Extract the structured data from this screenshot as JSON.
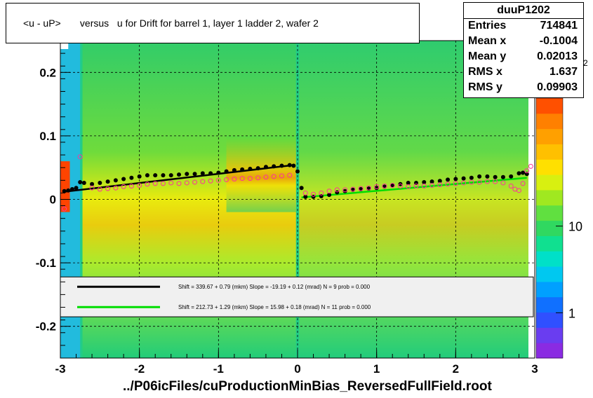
{
  "title": "<u - uP>       versus   u for Drift for barrel 1, layer 1 ladder 2, wafer 2",
  "footer": "../P06icFiles/cuProductionMinBias_ReversedFullField.root",
  "stats": {
    "name": "duuP1202",
    "rows": [
      {
        "key": "Entries",
        "value": "714841"
      },
      {
        "key": "Mean x",
        "value": "-0.1004"
      },
      {
        "key": "Mean y",
        "value": "0.02013"
      },
      {
        "key": "RMS x",
        "value": "1.637"
      },
      {
        "key": "RMS y",
        "value": "0.09903"
      }
    ]
  },
  "legend": [
    {
      "color": "#000000",
      "text": "Shift =   339.67 + 0.79 (mkm) Slope =   -19.19 + 0.12 (mrad)  N = 9 prob = 0.000"
    },
    {
      "color": "#00dd00",
      "text": "Shift =   212.73 + 1.29 (mkm) Slope =    15.98 + 0.18 (mrad)  N = 11 prob = 0.000"
    }
  ],
  "colors": {
    "black_series": "#000000",
    "green_series": "#00dd00",
    "pink_series": "#ff3399"
  },
  "chart_data": {
    "type": "heatmap",
    "xlim": [
      -3,
      3
    ],
    "ylim": [
      -0.25,
      0.25
    ],
    "x_ticks": [
      {
        "v": -3,
        "label": "-3"
      },
      {
        "v": -2,
        "label": "-2"
      },
      {
        "v": -1,
        "label": "-1"
      },
      {
        "v": 0,
        "label": "0"
      },
      {
        "v": 1,
        "label": "1"
      },
      {
        "v": 2,
        "label": "2"
      },
      {
        "v": 3,
        "label": "3"
      }
    ],
    "y_ticks": [
      {
        "v": 0.2,
        "label": "0.2"
      },
      {
        "v": 0.1,
        "label": "0.1"
      },
      {
        "v": 0,
        "label": "0"
      },
      {
        "v": -0.1,
        "label": "-0.1"
      },
      {
        "v": -0.2,
        "label": "-0.2"
      }
    ],
    "z_ticks": [
      {
        "v": 1,
        "label": "1"
      },
      {
        "v": 10,
        "label": "10"
      }
    ],
    "z_exponent_label": "2",
    "zlim": [
      0.3,
      300
    ],
    "grid": true,
    "series": [
      {
        "name": "",
        "marker": "black-dot",
        "points": [
          [
            -2.95,
            0.013
          ],
          [
            -2.9,
            0.014
          ],
          [
            -2.85,
            0.016
          ],
          [
            -2.8,
            0.018
          ],
          [
            -2.75,
            0.027
          ],
          [
            -2.7,
            0.026
          ],
          [
            -2.6,
            0.024
          ],
          [
            -2.5,
            0.026
          ],
          [
            -2.4,
            0.028
          ],
          [
            -2.3,
            0.03
          ],
          [
            -2.2,
            0.032
          ],
          [
            -2.1,
            0.034
          ],
          [
            -2.0,
            0.036
          ],
          [
            -1.9,
            0.038
          ],
          [
            -1.8,
            0.038
          ],
          [
            -1.7,
            0.038
          ],
          [
            -1.6,
            0.038
          ],
          [
            -1.5,
            0.039
          ],
          [
            -1.4,
            0.04
          ],
          [
            -1.3,
            0.04
          ],
          [
            -1.2,
            0.041
          ],
          [
            -1.1,
            0.041
          ],
          [
            -1.0,
            0.042
          ],
          [
            -0.9,
            0.044
          ],
          [
            -0.8,
            0.046
          ],
          [
            -0.7,
            0.047
          ],
          [
            -0.6,
            0.048
          ],
          [
            -0.5,
            0.049
          ],
          [
            -0.4,
            0.051
          ],
          [
            -0.3,
            0.052
          ],
          [
            -0.2,
            0.053
          ],
          [
            -0.1,
            0.054
          ],
          [
            -0.05,
            0.053
          ],
          [
            0.0,
            0.044
          ],
          [
            0.05,
            0.018
          ],
          [
            0.1,
            0.004
          ],
          [
            0.2,
            0.004
          ],
          [
            0.3,
            0.005
          ],
          [
            0.4,
            0.007
          ],
          [
            0.5,
            0.011
          ],
          [
            0.6,
            0.013
          ],
          [
            0.7,
            0.015
          ],
          [
            0.8,
            0.016
          ],
          [
            0.9,
            0.017
          ],
          [
            1.0,
            0.018
          ],
          [
            1.1,
            0.02
          ],
          [
            1.2,
            0.022
          ],
          [
            1.3,
            0.024
          ],
          [
            1.4,
            0.026
          ],
          [
            1.5,
            0.026
          ],
          [
            1.6,
            0.027
          ],
          [
            1.7,
            0.028
          ],
          [
            1.8,
            0.029
          ],
          [
            1.9,
            0.031
          ],
          [
            2.0,
            0.032
          ],
          [
            2.1,
            0.033
          ],
          [
            2.2,
            0.034
          ],
          [
            2.3,
            0.036
          ],
          [
            2.4,
            0.036
          ],
          [
            2.5,
            0.035
          ],
          [
            2.6,
            0.035
          ],
          [
            2.7,
            0.036
          ],
          [
            2.8,
            0.041
          ],
          [
            2.85,
            0.042
          ],
          [
            2.9,
            0.04
          ]
        ]
      },
      {
        "name": "",
        "marker": "pink-circle",
        "points": [
          [
            -2.95,
            -0.015
          ],
          [
            -2.75,
            0.067
          ],
          [
            -2.6,
            0.018
          ],
          [
            -2.5,
            0.016
          ],
          [
            -2.4,
            0.017
          ],
          [
            -2.3,
            0.018
          ],
          [
            -2.2,
            0.02
          ],
          [
            -2.1,
            0.021
          ],
          [
            -2.0,
            0.022
          ],
          [
            -1.9,
            0.024
          ],
          [
            -1.8,
            0.025
          ],
          [
            -1.7,
            0.025
          ],
          [
            -1.6,
            0.026
          ],
          [
            -1.5,
            0.025
          ],
          [
            -1.4,
            0.026
          ],
          [
            -1.3,
            0.027
          ],
          [
            -1.2,
            0.028
          ],
          [
            -1.1,
            0.029
          ],
          [
            -1.0,
            0.03
          ],
          [
            -0.9,
            0.031
          ],
          [
            -0.8,
            0.032
          ],
          [
            -0.7,
            0.033
          ],
          [
            -0.6,
            0.033
          ],
          [
            -0.5,
            0.034
          ],
          [
            -0.4,
            0.035
          ],
          [
            -0.3,
            0.036
          ],
          [
            -0.2,
            0.037
          ],
          [
            -0.1,
            0.038
          ],
          [
            0.1,
            0.01
          ],
          [
            0.2,
            0.008
          ],
          [
            0.3,
            0.01
          ],
          [
            0.4,
            0.013
          ],
          [
            0.5,
            0.015
          ],
          [
            0.6,
            0.015
          ],
          [
            0.7,
            0.016
          ],
          [
            0.8,
            0.017
          ],
          [
            0.9,
            0.018
          ],
          [
            1.0,
            0.02
          ],
          [
            1.1,
            0.021
          ],
          [
            1.2,
            0.022
          ],
          [
            1.3,
            0.021
          ],
          [
            1.4,
            0.02
          ],
          [
            1.5,
            0.021
          ],
          [
            1.6,
            0.021
          ],
          [
            1.7,
            0.022
          ],
          [
            1.8,
            0.023
          ],
          [
            1.9,
            0.024
          ],
          [
            2.0,
            0.025
          ],
          [
            2.1,
            0.026
          ],
          [
            2.2,
            0.027
          ],
          [
            2.3,
            0.027
          ],
          [
            2.4,
            0.028
          ],
          [
            2.5,
            0.028
          ],
          [
            2.6,
            0.026
          ],
          [
            2.7,
            0.021
          ],
          [
            2.75,
            0.016
          ],
          [
            2.8,
            0.014
          ],
          [
            2.85,
            0.025
          ],
          [
            2.9,
            0.045
          ],
          [
            2.95,
            0.052
          ]
        ]
      }
    ],
    "fits": [
      {
        "name": "",
        "color": "black",
        "points": [
          [
            -2.95,
            0.012
          ],
          [
            -0.05,
            0.054
          ]
        ]
      },
      {
        "name": "",
        "color": "green",
        "points": [
          [
            0.05,
            0.003
          ],
          [
            2.9,
            0.034
          ]
        ]
      }
    ]
  }
}
